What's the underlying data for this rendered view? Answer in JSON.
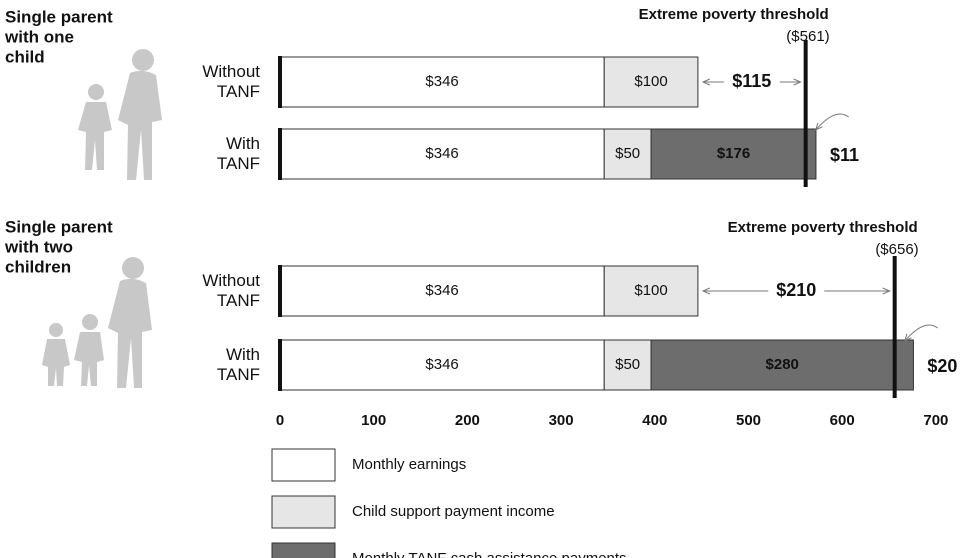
{
  "chart_data": {
    "type": "stacked-barh",
    "xlim": [
      0,
      700
    ],
    "xticks": [
      0,
      100,
      200,
      300,
      400,
      500,
      600,
      700
    ],
    "series": [
      {
        "name": "Monthly earnings",
        "color": "#ffffff"
      },
      {
        "name": "Child support payment income",
        "color": "#e6e6e6"
      },
      {
        "name": "Monthly TANF cash assistance payments",
        "color": "#6d6d6d"
      }
    ],
    "panels": [
      {
        "title_lines": [
          "Single parent",
          "with one",
          "child"
        ],
        "categories": [
          "Without TANF",
          "With TANF"
        ],
        "series": [
          {
            "values": [
              346,
              346
            ],
            "value_labels": [
              "$346",
              "$346"
            ]
          },
          {
            "values": [
              100,
              50
            ],
            "value_labels": [
              "$100",
              "$50"
            ]
          },
          {
            "values": [
              null,
              176
            ],
            "value_labels": [
              null,
              "$176"
            ]
          }
        ],
        "threshold": {
          "label": "Extreme poverty threshold",
          "value": 561,
          "value_label": "($561)"
        },
        "gap": {
          "value": 115,
          "label": "$115"
        },
        "excess": {
          "value": 11,
          "label": "$11"
        }
      },
      {
        "title_lines": [
          "Single parent",
          "with two",
          "children"
        ],
        "categories": [
          "Without TANF",
          "With TANF"
        ],
        "series": [
          {
            "values": [
              346,
              346
            ],
            "value_labels": [
              "$346",
              "$346"
            ]
          },
          {
            "values": [
              100,
              50
            ],
            "value_labels": [
              "$100",
              "$50"
            ]
          },
          {
            "values": [
              null,
              280
            ],
            "value_labels": [
              null,
              "$280"
            ]
          }
        ],
        "threshold": {
          "label": "Extreme poverty threshold",
          "value": 656,
          "value_label": "($656)"
        },
        "gap": {
          "value": 210,
          "label": "$210"
        },
        "excess": {
          "value": 20,
          "label": "$20"
        }
      }
    ]
  }
}
